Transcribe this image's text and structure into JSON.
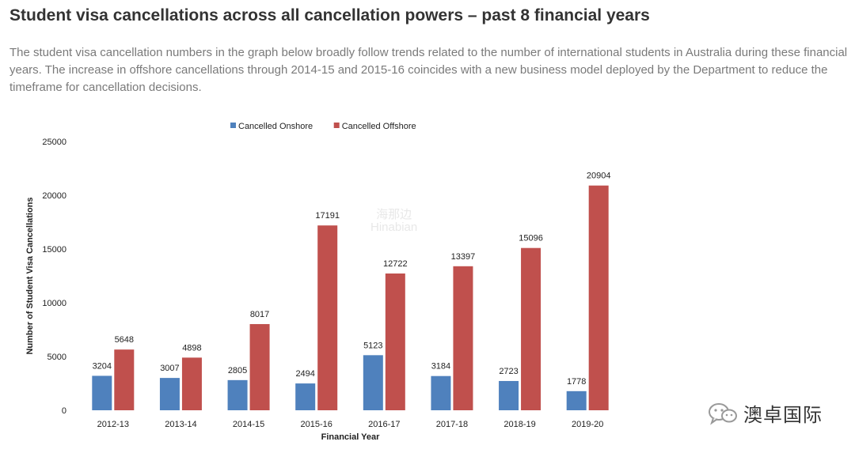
{
  "header": {
    "title": "Student visa cancellations across all cancellation powers – past 8 financial years",
    "description": "The student visa cancellation numbers in the graph below broadly follow trends related to the number of international students in Australia during these financial years. The increase in offshore cancellations through 2014-15 and 2015-16 coincides with a new business model deployed by the Department to reduce the timeframe for cancellation decisions."
  },
  "chart_data": {
    "type": "bar",
    "title": "",
    "xlabel": "Financial Year",
    "ylabel": "Number of Student Visa Cancellations",
    "ylim": [
      0,
      25000
    ],
    "yticks": [
      0,
      5000,
      10000,
      15000,
      20000,
      25000
    ],
    "grid": false,
    "legend_position": "top",
    "categories": [
      "2012-13",
      "2013-14",
      "2014-15",
      "2015-16",
      "2016-17",
      "2017-18",
      "2018-19",
      "2019-20"
    ],
    "series": [
      {
        "name": "Cancelled Onshore",
        "color": "#4f81bd",
        "values": [
          3204,
          3007,
          2805,
          2494,
          5123,
          3184,
          2723,
          1778
        ]
      },
      {
        "name": "Cancelled Offshore",
        "color": "#c0504d",
        "values": [
          5648,
          4898,
          8017,
          17191,
          12722,
          13397,
          15096,
          20904
        ]
      }
    ]
  },
  "watermark": {
    "line1": "海那边",
    "line2": "Hinabian"
  },
  "brand": {
    "icon": "wechat-icon",
    "name": "澳卓国际"
  }
}
